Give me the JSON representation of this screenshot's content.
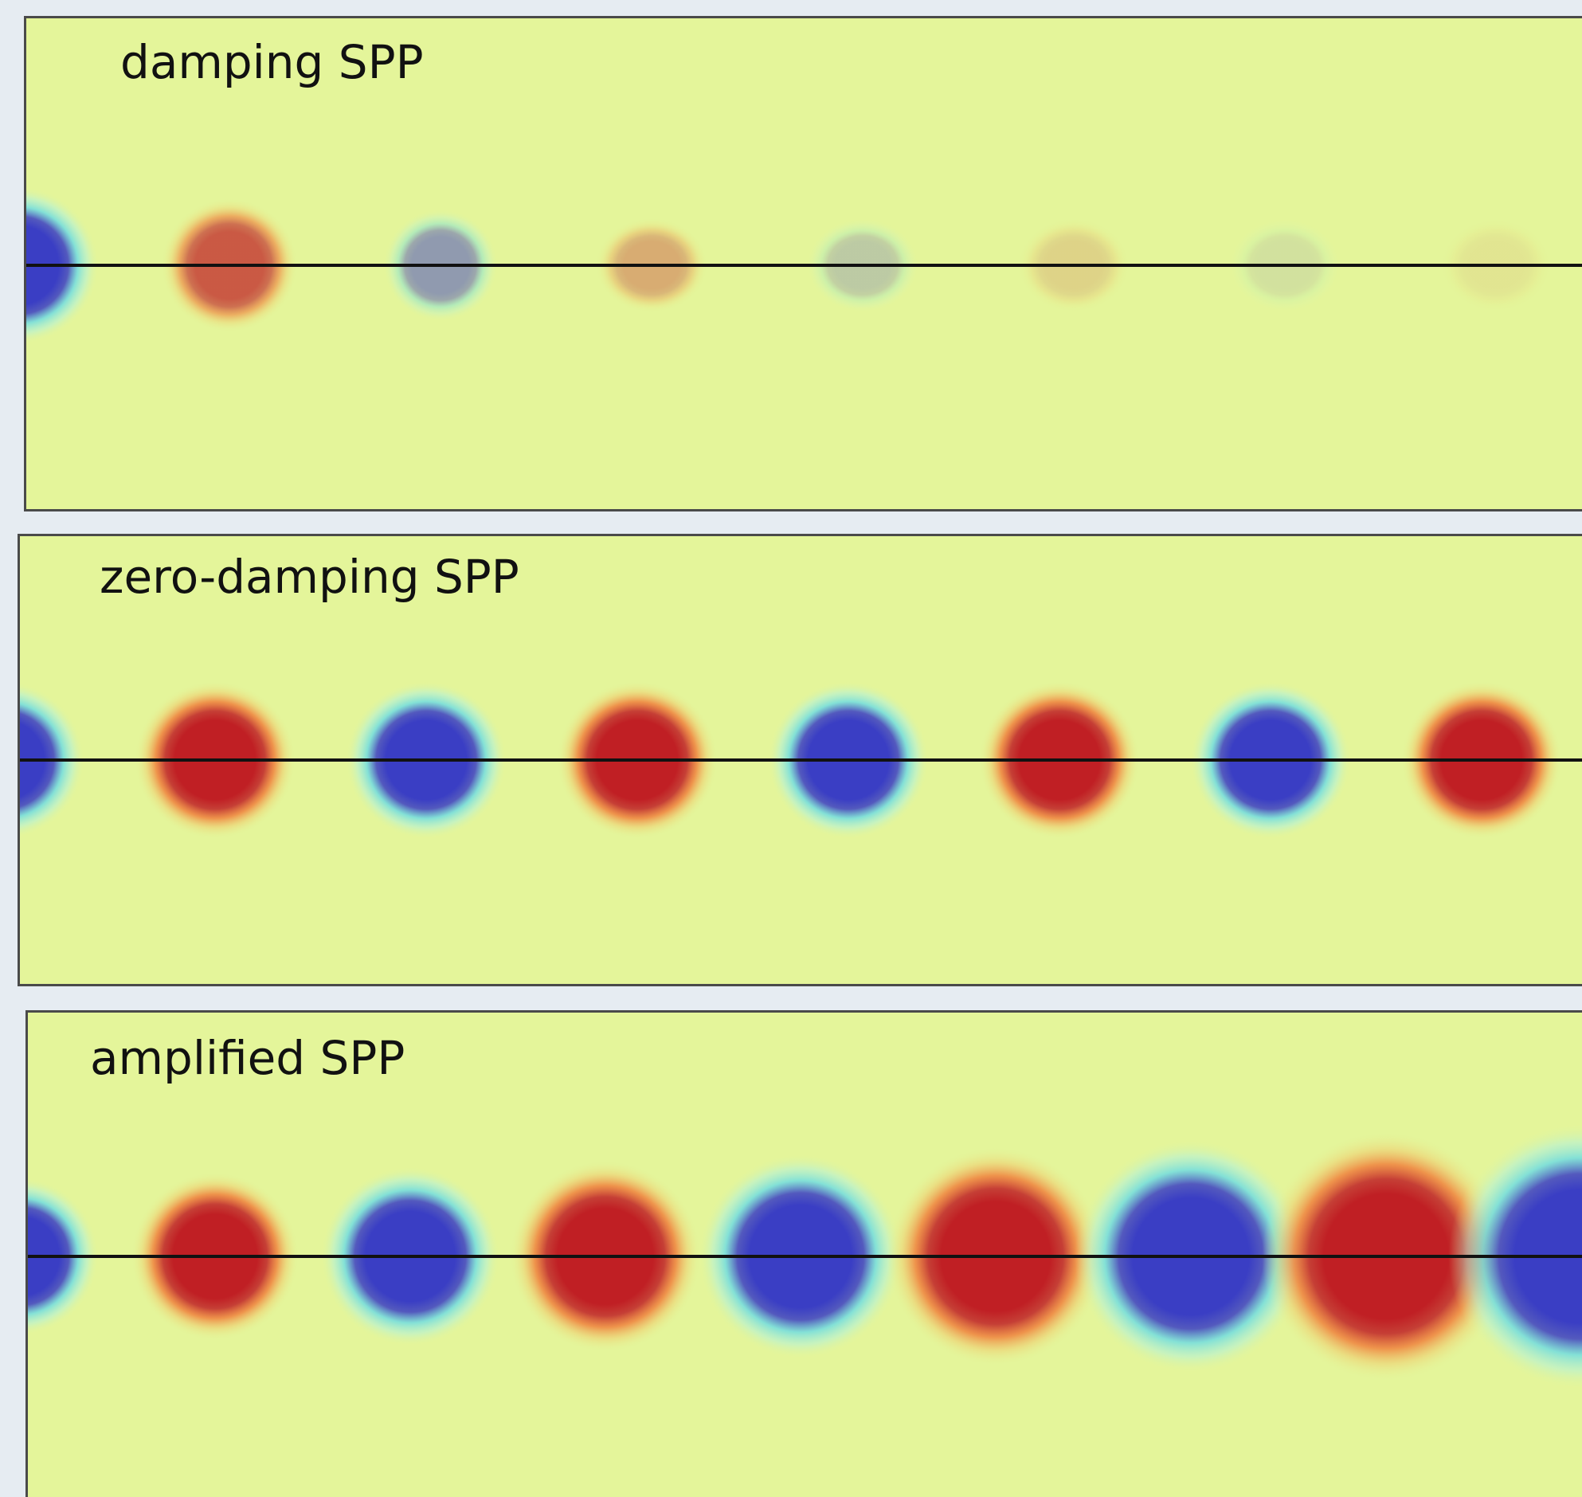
{
  "panels": [
    {
      "id": "damping",
      "label": "damping SPP",
      "amplitude_start": 1.0,
      "amplitude_end": 0.06
    },
    {
      "id": "zero-damping",
      "label": "zero-damping SPP",
      "amplitude_start": 1.0,
      "amplitude_end": 1.0
    },
    {
      "id": "amplified",
      "label": "amplified SPP",
      "amplitude_start": 1.0,
      "amplitude_end": 3.2
    }
  ],
  "colors": {
    "background_field": "#e4f59a",
    "positive_lobe": "#c01f24",
    "negative_lobe": "#3a3ec4",
    "interface_line": "#111111",
    "frame": "#4a4a4a"
  }
}
